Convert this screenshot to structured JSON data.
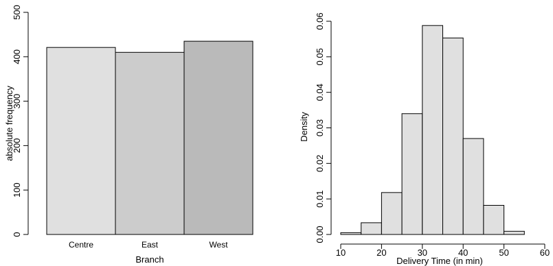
{
  "chart_data": [
    {
      "type": "bar",
      "xlabel": "Branch",
      "ylabel": "absolute frequency",
      "ylim": [
        0,
        500
      ],
      "yticks": [
        0,
        100,
        200,
        300,
        400,
        500
      ],
      "categories": [
        "Centre",
        "East",
        "West"
      ],
      "values": [
        421,
        410,
        435
      ],
      "colors": [
        "#e0e0e0",
        "#cccccc",
        "#bababa"
      ],
      "grid": false
    },
    {
      "type": "bar",
      "subtype": "histogram",
      "xlabel": "Delivery Time (in min)",
      "ylabel": "Density",
      "xlim": [
        10,
        60
      ],
      "ylim": [
        0,
        0.06
      ],
      "xticks": [
        10,
        20,
        30,
        40,
        50,
        60
      ],
      "yticks": [
        "0.00",
        "0.01",
        "0.02",
        "0.03",
        "0.04",
        "0.05",
        "0.06"
      ],
      "bins": [
        {
          "from": 10,
          "to": 15,
          "density": 0.0005
        },
        {
          "from": 15,
          "to": 20,
          "density": 0.0033
        },
        {
          "from": 20,
          "to": 25,
          "density": 0.0118
        },
        {
          "from": 25,
          "to": 30,
          "density": 0.034
        },
        {
          "from": 30,
          "to": 35,
          "density": 0.0588
        },
        {
          "from": 35,
          "to": 40,
          "density": 0.0553
        },
        {
          "from": 40,
          "to": 45,
          "density": 0.027
        },
        {
          "from": 45,
          "to": 50,
          "density": 0.0082
        },
        {
          "from": 50,
          "to": 55,
          "density": 0.0009
        }
      ],
      "bar_color": "#e0e0e0",
      "grid": false
    }
  ]
}
